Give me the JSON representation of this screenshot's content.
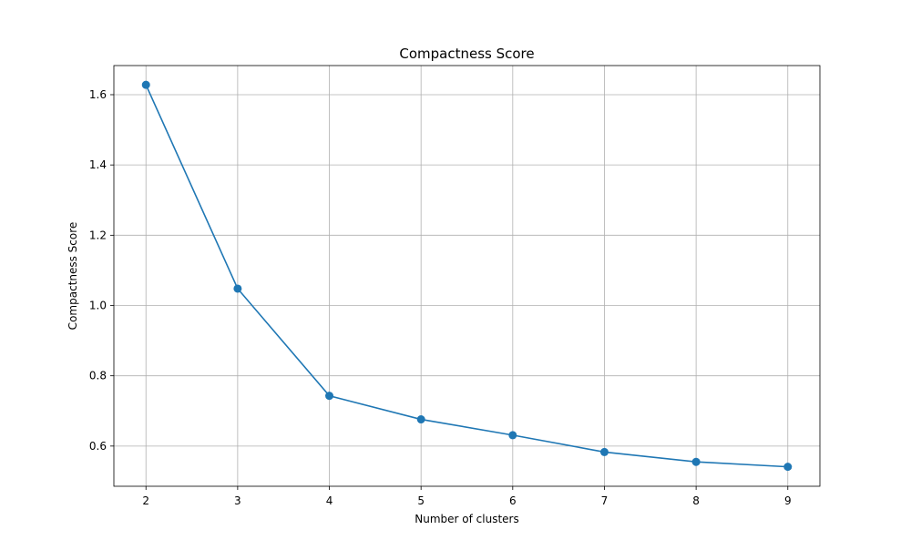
{
  "chart_data": {
    "type": "line",
    "title": "Compactness Score",
    "xlabel": "Number of clusters",
    "ylabel": "Compactness Score",
    "x": [
      2,
      3,
      4,
      5,
      6,
      7,
      8,
      9
    ],
    "series": [
      {
        "values": [
          1.628,
          1.048,
          0.743,
          0.676,
          0.631,
          0.583,
          0.555,
          0.541
        ],
        "color": "#1f77b4",
        "marker": "circle"
      }
    ],
    "xticks": [
      2,
      3,
      4,
      5,
      6,
      7,
      8,
      9
    ],
    "yticks": [
      0.6,
      0.8,
      1.0,
      1.2,
      1.4,
      1.6
    ],
    "ytick_labels": [
      "0.6",
      "0.8",
      "1.0",
      "1.2",
      "1.4",
      "1.6"
    ],
    "xlim": [
      1.65,
      9.35
    ],
    "ylim": [
      0.4856,
      1.6829
    ],
    "grid": true,
    "legend": false
  }
}
